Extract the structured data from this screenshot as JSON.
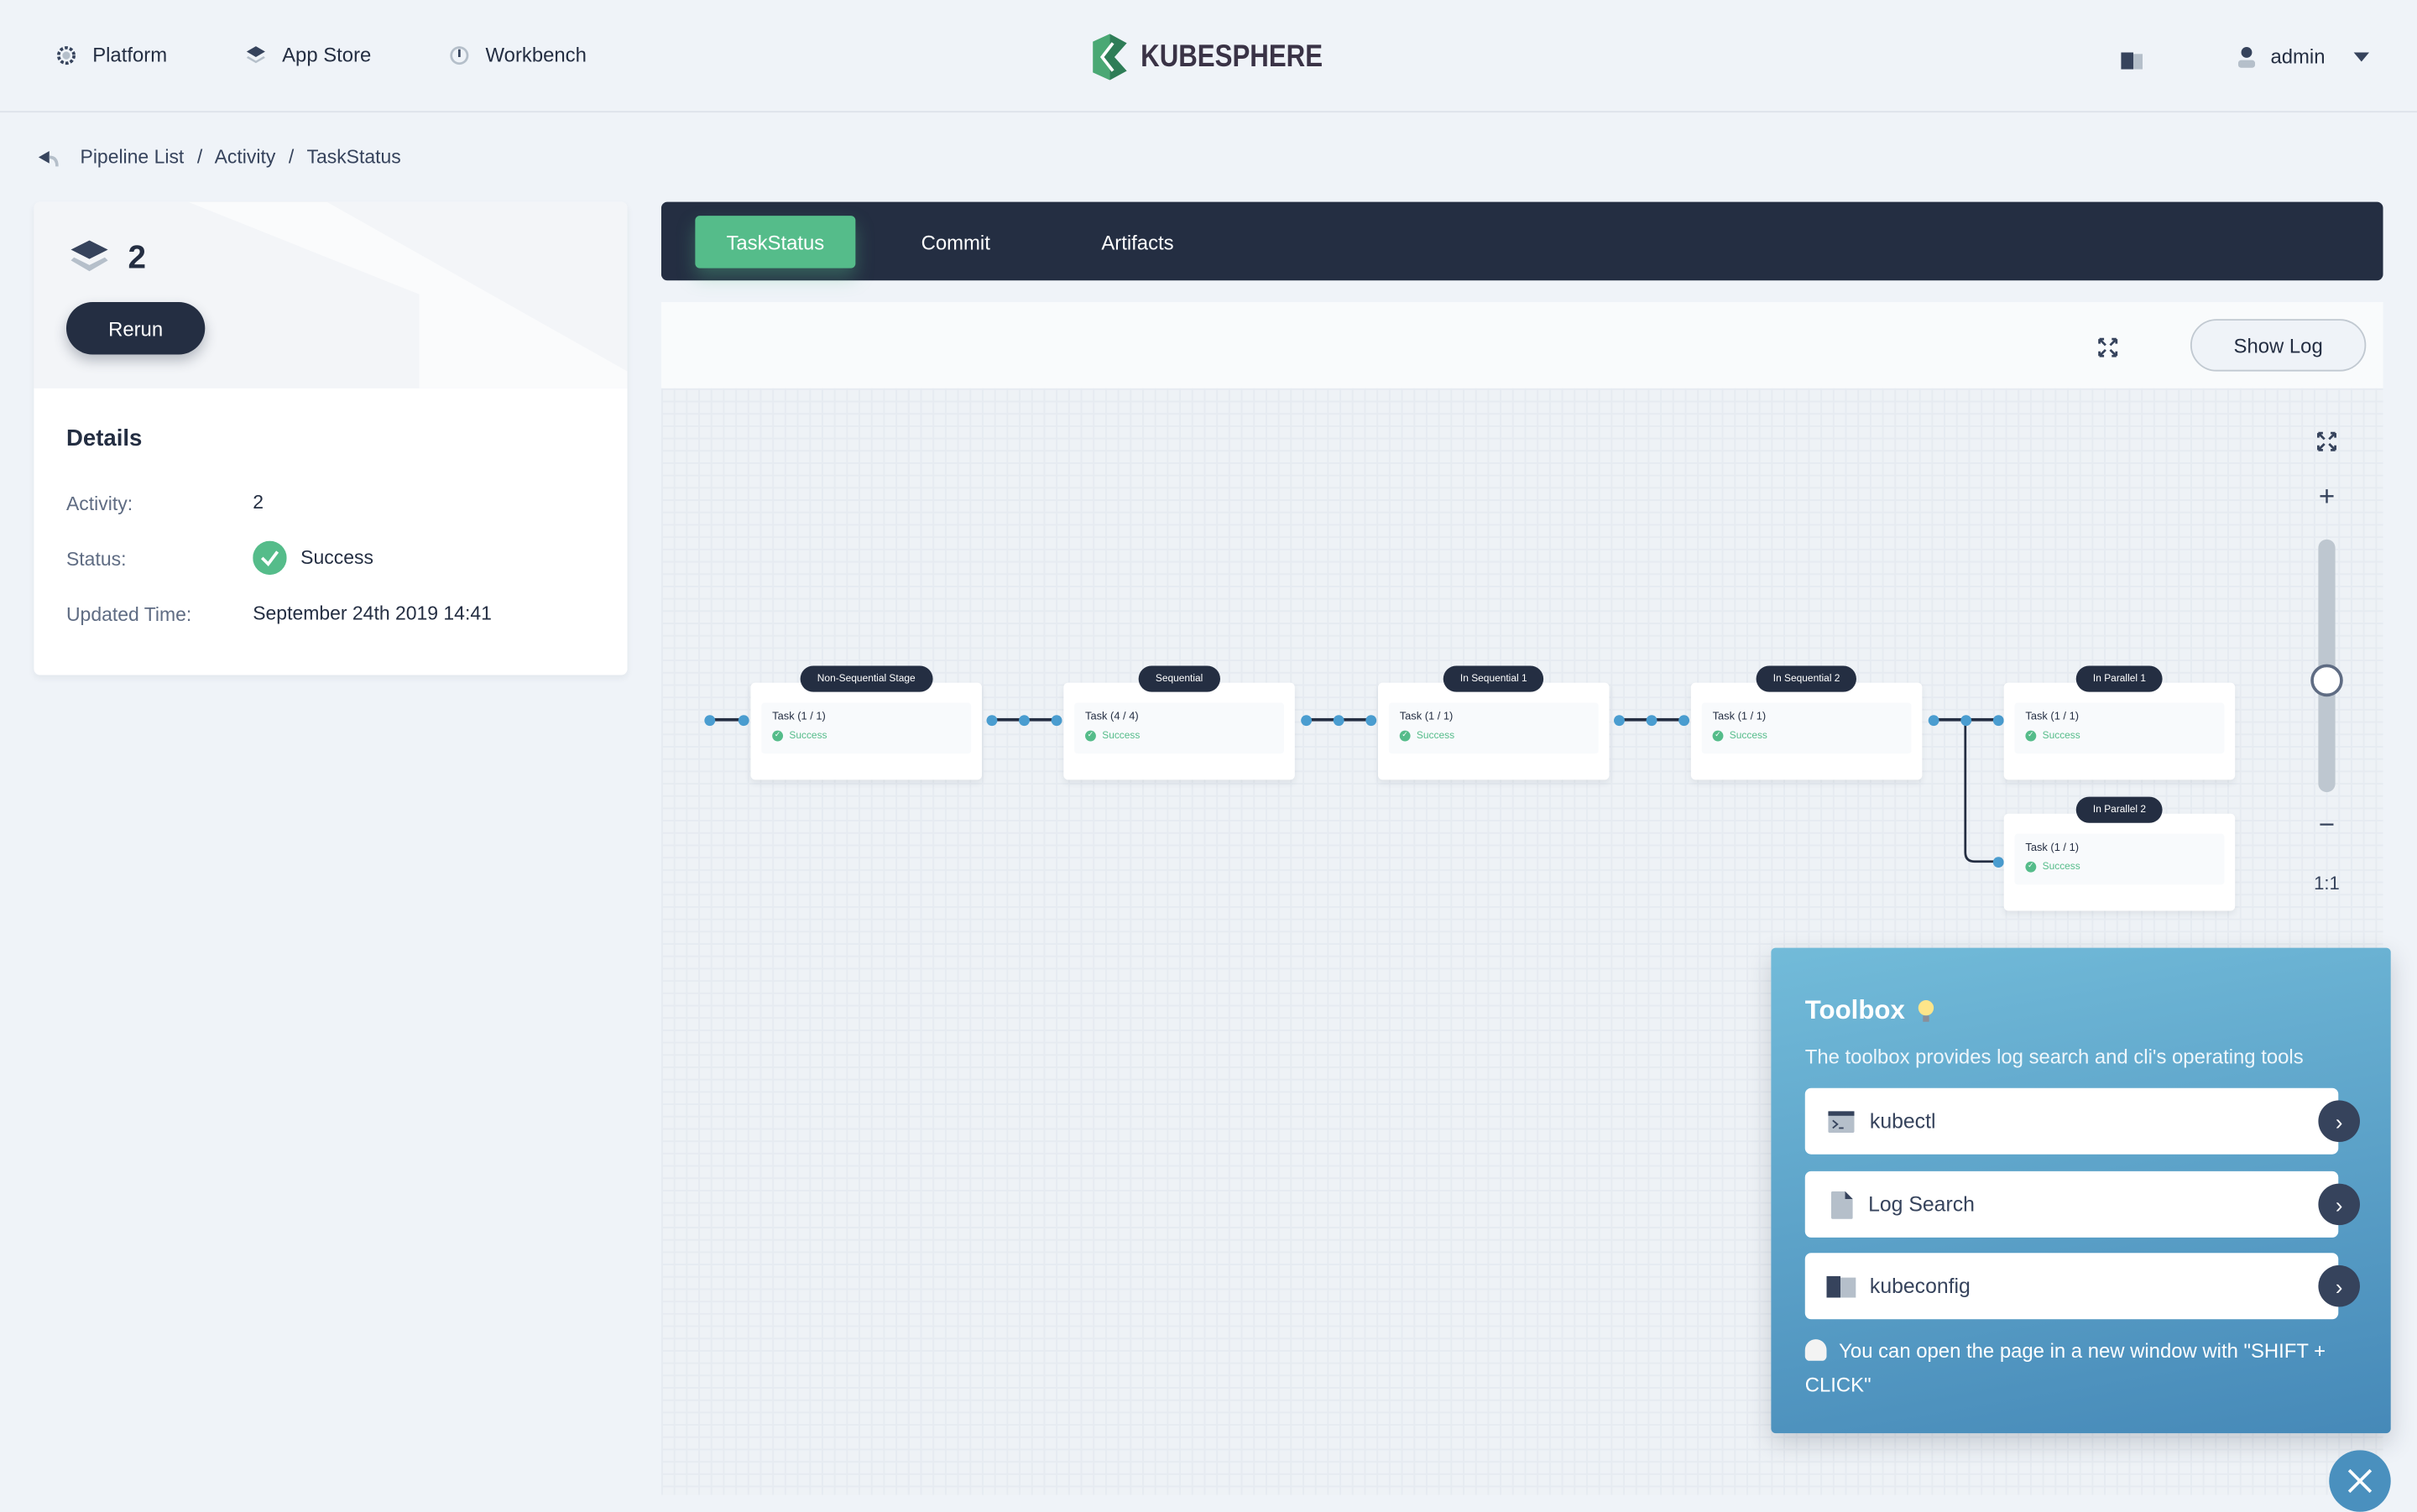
{
  "header": {
    "nav": [
      {
        "label": "Platform",
        "icon": "gear-icon"
      },
      {
        "label": "App Store",
        "icon": "layers-icon"
      },
      {
        "label": "Workbench",
        "icon": "dashboard-icon"
      }
    ],
    "logo": "KUBESPHERE",
    "user": "admin"
  },
  "breadcrumb": [
    "Pipeline List",
    "Activity",
    "TaskStatus"
  ],
  "breadcrumb_sep": "/",
  "run": {
    "number": "2",
    "rerun_label": "Rerun"
  },
  "details": {
    "title": "Details",
    "activity_label": "Activity:",
    "activity": "2",
    "status_label": "Status:",
    "status": "Success",
    "updated_label": "Updated Time:",
    "updated": "September 24th 2019 14:41"
  },
  "tabs": [
    {
      "label": "TaskStatus",
      "active": true
    },
    {
      "label": "Commit"
    },
    {
      "label": "Artifacts"
    }
  ],
  "toolbar": {
    "show_log": "Show Log"
  },
  "pipeline": {
    "stages": [
      {
        "name": "Non-Sequential Stage",
        "task": "Task (1 / 1)",
        "status": "Success"
      },
      {
        "name": "Sequential",
        "task": "Task (4 / 4)",
        "status": "Success"
      },
      {
        "name": "In Sequential 1",
        "task": "Task (1 / 1)",
        "status": "Success"
      },
      {
        "name": "In Sequential 2",
        "task": "Task (1 / 1)",
        "status": "Success"
      },
      {
        "name": "In Parallel 1",
        "task": "Task (1 / 1)",
        "status": "Success"
      },
      {
        "name": "In Parallel 2",
        "task": "Task (1 / 1)",
        "status": "Success"
      }
    ]
  },
  "zoom": {
    "reset_label": "1:1",
    "plus": "+",
    "minus": "−"
  },
  "toolbox": {
    "title": "Toolbox",
    "description": "The toolbox provides log search and cli's operating tools",
    "items": [
      {
        "label": "kubectl",
        "icon": "terminal-icon"
      },
      {
        "label": "Log Search",
        "icon": "file-icon"
      },
      {
        "label": "kubeconfig",
        "icon": "book-icon"
      }
    ],
    "tip": "You can open the page in a new window with \"SHIFT + CLICK\""
  },
  "colors": {
    "primary": "#242e42",
    "success": "#55bc8a",
    "accent_blue": "#4a9dd0"
  }
}
